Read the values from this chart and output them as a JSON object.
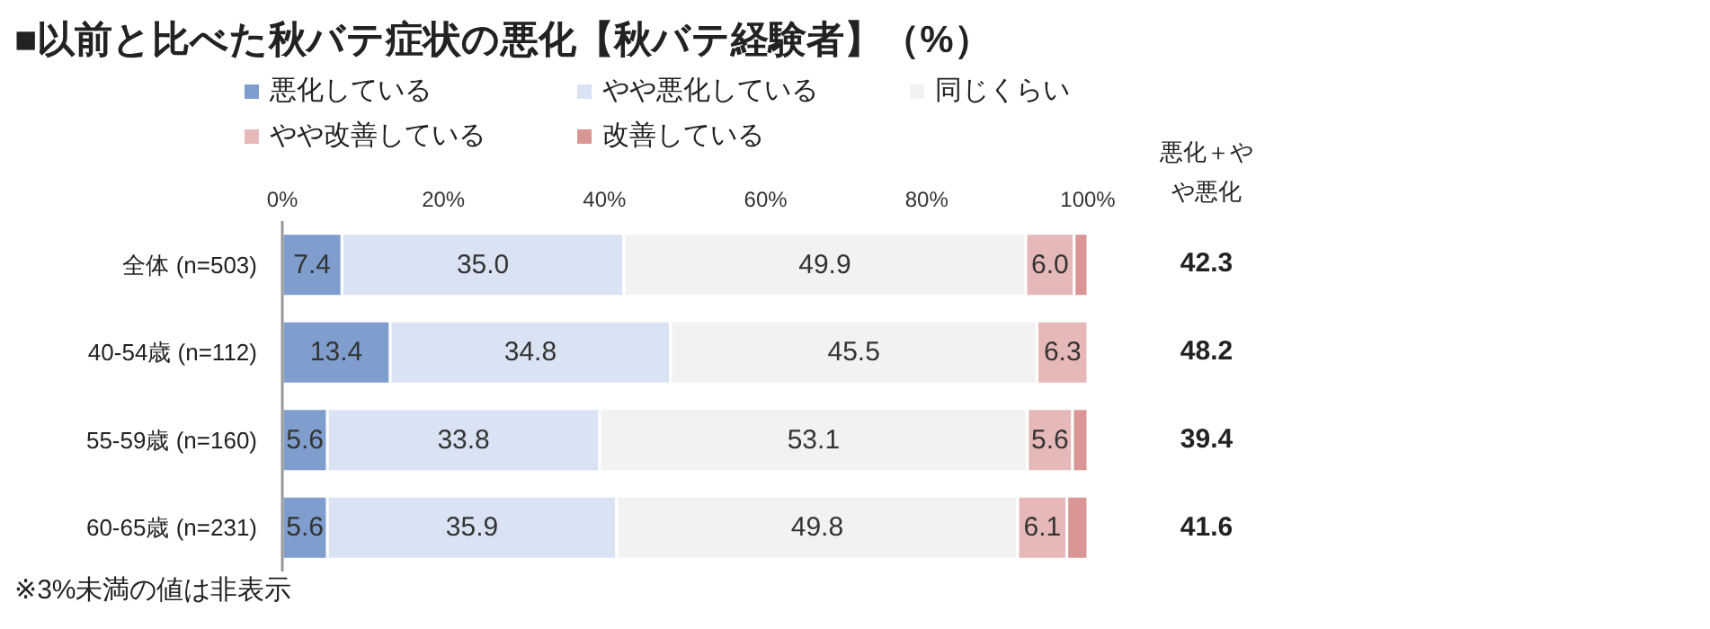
{
  "chart_data": {
    "type": "bar",
    "orientation": "horizontal",
    "stacked": true,
    "title": "■以前と比べた秋バテ症状の悪化【秋バテ経験者】（%）",
    "categories": [
      "全体 (n=503)",
      "40-54歳 (n=112)",
      "55-59歳 (n=160)",
      "60-65歳 (n=231)"
    ],
    "series": [
      {
        "name": "悪化している",
        "color": "#809ecd",
        "values": [
          7.4,
          13.4,
          5.6,
          5.6
        ],
        "value_labels": [
          "7.4",
          "13.4",
          "5.6",
          "5.6"
        ]
      },
      {
        "name": "やや悪化している",
        "color": "#dae3f3",
        "values": [
          35.0,
          34.8,
          33.8,
          35.9
        ],
        "value_labels": [
          "35.0",
          "34.8",
          "33.8",
          "35.9"
        ]
      },
      {
        "name": "同じくらい",
        "color": "#f2f2f2",
        "values": [
          49.9,
          45.5,
          53.1,
          49.8
        ],
        "value_labels": [
          "49.9",
          "45.5",
          "53.1",
          "49.8"
        ]
      },
      {
        "name": "やや改善している",
        "color": "#e6b9b8",
        "values": [
          6.0,
          6.3,
          5.6,
          6.1
        ],
        "value_labels": [
          "6.0",
          "6.3",
          "5.6",
          "6.1"
        ]
      },
      {
        "name": "改善している",
        "color": "#d99694",
        "values": [
          1.7,
          0,
          1.9,
          2.6
        ],
        "value_labels": [
          null,
          null,
          null,
          null
        ]
      }
    ],
    "xlim": [
      0,
      100
    ],
    "xticks": [
      {
        "value": 0,
        "label": "0%"
      },
      {
        "value": 20,
        "label": "20%"
      },
      {
        "value": 40,
        "label": "40%"
      },
      {
        "value": 60,
        "label": "60%"
      },
      {
        "value": 80,
        "label": "80%"
      },
      {
        "value": 100,
        "label": "100%"
      }
    ],
    "legend": "top",
    "grid": false,
    "annotations": [
      "悪化＋やや悪化",
      "42.3",
      "48.2",
      "39.4",
      "41.6",
      "※3%未満の値は非表示"
    ]
  }
}
